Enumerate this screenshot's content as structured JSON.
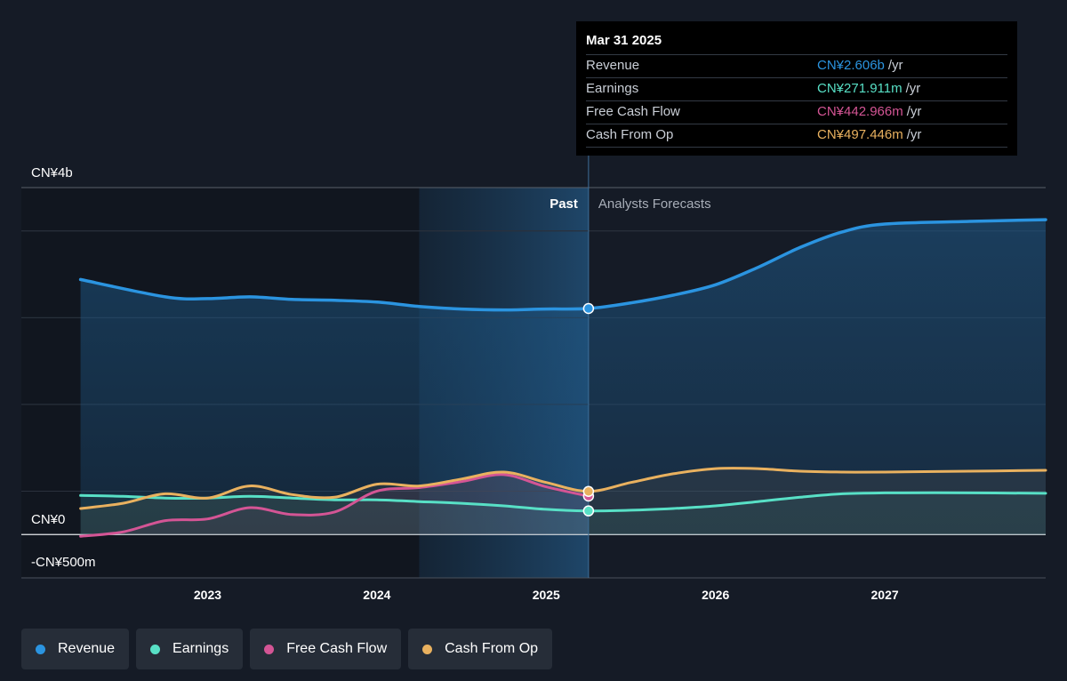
{
  "chart_data": {
    "type": "line",
    "y_unit": "CN¥",
    "ylim": [
      -500,
      4000
    ],
    "y_ticks": [
      {
        "value": 4000,
        "label": "CN¥4b"
      },
      {
        "value": 0,
        "label": "CN¥0"
      },
      {
        "value": -500,
        "label": "-CN¥500m"
      }
    ],
    "x_range": [
      2021.9,
      2027.95
    ],
    "x_ticks": [
      {
        "value": 2023,
        "label": "2023"
      },
      {
        "value": 2024,
        "label": "2024"
      },
      {
        "value": 2025,
        "label": "2025"
      },
      {
        "value": 2026,
        "label": "2026"
      },
      {
        "value": 2027,
        "label": "2027"
      }
    ],
    "past_label": "Past",
    "forecast_label": "Analysts Forecasts",
    "past_end": 2025.25,
    "highlight_start": 2024.25,
    "series": [
      {
        "name": "Revenue",
        "color": "#2b94e0",
        "points": [
          [
            2022.25,
            2940
          ],
          [
            2022.75,
            2740
          ],
          [
            2023.0,
            2720
          ],
          [
            2023.25,
            2740
          ],
          [
            2023.5,
            2710
          ],
          [
            2023.75,
            2700
          ],
          [
            2024.0,
            2680
          ],
          [
            2024.25,
            2630
          ],
          [
            2024.5,
            2600
          ],
          [
            2024.75,
            2590
          ],
          [
            2025.0,
            2600
          ],
          [
            2025.25,
            2606
          ],
          [
            2025.5,
            2670
          ],
          [
            2025.75,
            2760
          ],
          [
            2026.0,
            2880
          ],
          [
            2026.25,
            3080
          ],
          [
            2026.5,
            3310
          ],
          [
            2026.75,
            3490
          ],
          [
            2027.0,
            3580
          ],
          [
            2027.5,
            3610
          ],
          [
            2027.95,
            3630
          ]
        ]
      },
      {
        "name": "Earnings",
        "color": "#58e0c6",
        "points": [
          [
            2022.25,
            450
          ],
          [
            2022.5,
            440
          ],
          [
            2022.75,
            420
          ],
          [
            2023.0,
            420
          ],
          [
            2023.25,
            440
          ],
          [
            2023.5,
            420
          ],
          [
            2023.75,
            400
          ],
          [
            2024.0,
            400
          ],
          [
            2024.25,
            380
          ],
          [
            2024.5,
            360
          ],
          [
            2024.75,
            330
          ],
          [
            2025.0,
            290
          ],
          [
            2025.25,
            272
          ],
          [
            2025.5,
            280
          ],
          [
            2025.75,
            300
          ],
          [
            2026.0,
            330
          ],
          [
            2026.25,
            380
          ],
          [
            2026.5,
            430
          ],
          [
            2026.75,
            470
          ],
          [
            2027.0,
            480
          ],
          [
            2027.5,
            480
          ],
          [
            2027.95,
            475
          ]
        ]
      },
      {
        "name": "Free Cash Flow",
        "color": "#d45595",
        "points": [
          [
            2022.25,
            -20
          ],
          [
            2022.5,
            30
          ],
          [
            2022.75,
            160
          ],
          [
            2023.0,
            180
          ],
          [
            2023.25,
            310
          ],
          [
            2023.5,
            230
          ],
          [
            2023.75,
            260
          ],
          [
            2024.0,
            500
          ],
          [
            2024.25,
            540
          ],
          [
            2024.5,
            610
          ],
          [
            2024.75,
            690
          ],
          [
            2025.0,
            550
          ],
          [
            2025.25,
            443
          ]
        ]
      },
      {
        "name": "Cash From Op",
        "color": "#e9b15f",
        "points": [
          [
            2022.25,
            300
          ],
          [
            2022.5,
            360
          ],
          [
            2022.75,
            470
          ],
          [
            2023.0,
            420
          ],
          [
            2023.25,
            560
          ],
          [
            2023.5,
            460
          ],
          [
            2023.75,
            430
          ],
          [
            2024.0,
            580
          ],
          [
            2024.25,
            560
          ],
          [
            2024.5,
            640
          ],
          [
            2024.75,
            720
          ],
          [
            2025.0,
            600
          ],
          [
            2025.25,
            497
          ],
          [
            2025.5,
            600
          ],
          [
            2025.75,
            700
          ],
          [
            2026.0,
            760
          ],
          [
            2026.25,
            760
          ],
          [
            2026.5,
            730
          ],
          [
            2026.75,
            720
          ],
          [
            2027.0,
            720
          ],
          [
            2027.5,
            730
          ],
          [
            2027.95,
            740
          ]
        ]
      }
    ]
  },
  "tooltip": {
    "date": "Mar 31 2025",
    "rows": [
      {
        "name": "Revenue",
        "value": "CN¥2.606b",
        "unit": "/yr",
        "color": "#2b94e0"
      },
      {
        "name": "Earnings",
        "value": "CN¥271.911m",
        "unit": "/yr",
        "color": "#58e0c6"
      },
      {
        "name": "Free Cash Flow",
        "value": "CN¥442.966m",
        "unit": "/yr",
        "color": "#d45595"
      },
      {
        "name": "Cash From Op",
        "value": "CN¥497.446m",
        "unit": "/yr",
        "color": "#e9b15f"
      }
    ]
  },
  "legend": [
    {
      "label": "Revenue",
      "color": "#2b94e0"
    },
    {
      "label": "Earnings",
      "color": "#58e0c6"
    },
    {
      "label": "Free Cash Flow",
      "color": "#d45595"
    },
    {
      "label": "Cash From Op",
      "color": "#e9b15f"
    }
  ]
}
